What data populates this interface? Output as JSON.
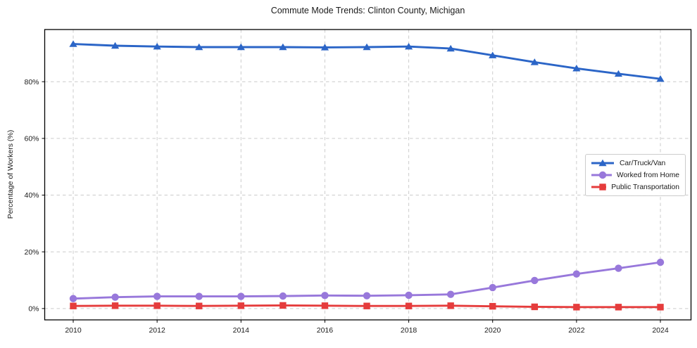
{
  "title": "Commute Mode Trends: Clinton County, Michigan",
  "axis_color": "#000000",
  "grid_color": "#cccccc",
  "text_color": "#1a1a1a",
  "chart_data": {
    "type": "line",
    "title": "Commute Mode Trends: Clinton County, Michigan",
    "xlabel": "",
    "ylabel": "Percentage of Workers (%)",
    "x": [
      2010,
      2011,
      2012,
      2013,
      2014,
      2015,
      2016,
      2017,
      2018,
      2019,
      2020,
      2021,
      2022,
      2023,
      2024
    ],
    "series": [
      {
        "name": "Car/Truck/Van",
        "color": "#2B65C7",
        "marker": "triangle",
        "values": [
          93.3,
          92.7,
          92.4,
          92.2,
          92.2,
          92.2,
          92.1,
          92.2,
          92.4,
          91.7,
          89.3,
          86.9,
          84.7,
          82.8,
          81.0
        ]
      },
      {
        "name": "Worked from Home",
        "color": "#9878DB",
        "marker": "circle",
        "values": [
          3.5,
          4.0,
          4.3,
          4.3,
          4.3,
          4.4,
          4.6,
          4.5,
          4.7,
          5.0,
          7.4,
          9.9,
          12.2,
          14.2,
          16.3
        ]
      },
      {
        "name": "Public Transportation",
        "color": "#E53C3C",
        "marker": "square",
        "values": [
          0.9,
          1.0,
          1.0,
          0.9,
          1.0,
          1.1,
          1.0,
          0.9,
          0.9,
          1.0,
          0.8,
          0.6,
          0.5,
          0.5,
          0.5
        ]
      }
    ],
    "xlim": [
      2009.32,
      2024.73
    ],
    "ylim": [
      -4.0,
      98.4
    ],
    "xticks": [
      2010,
      2012,
      2014,
      2016,
      2018,
      2020,
      2022,
      2024
    ],
    "xtick_labels": [
      "2010",
      "2012",
      "2014",
      "2016",
      "2018",
      "2020",
      "2022",
      "2024"
    ],
    "yticks": [
      0,
      20,
      40,
      60,
      80
    ],
    "ytick_labels": [
      "0%",
      "20%",
      "40%",
      "60%",
      "80%"
    ],
    "grid": true,
    "grid_style": "dashed",
    "legend_position": "right-middle"
  }
}
